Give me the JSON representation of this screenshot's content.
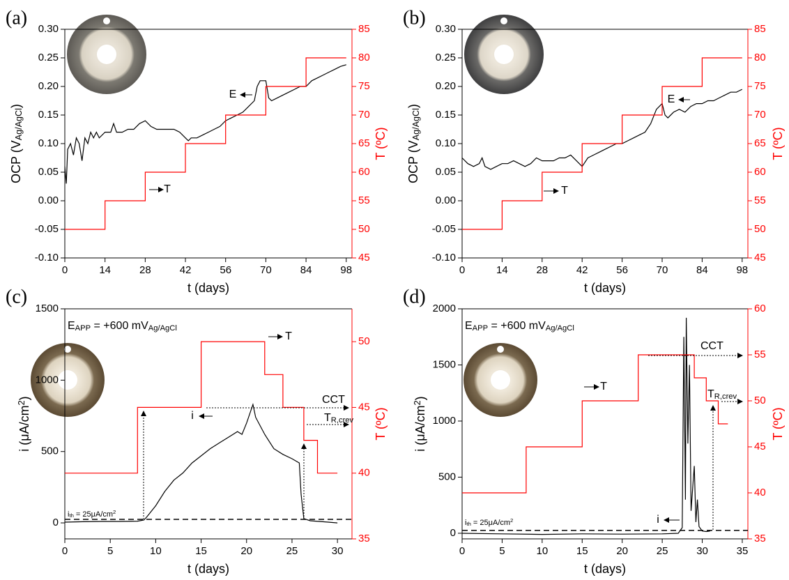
{
  "chart_data": [
    {
      "type": "line",
      "panel": "(a)",
      "x_label": [
        {
          "text": "t (days)"
        }
      ],
      "y_label": [
        {
          "text": "OCP (V"
        },
        {
          "text": "Ag/AgCl",
          "sub": true
        },
        {
          "text": ")"
        }
      ],
      "y2_label": [
        {
          "text": "T (ºC)"
        }
      ],
      "xlim": [
        0,
        100
      ],
      "xticks": [
        0,
        14,
        28,
        42,
        56,
        70,
        84,
        98
      ],
      "ylim": [
        -0.1,
        0.3
      ],
      "yticks": [
        {
          "value": -0.1,
          "label": "-0.10"
        },
        -0.05,
        {
          "value": 0,
          "label": "0.00"
        },
        0.05,
        {
          "value": 0.1,
          "label": "0.10"
        },
        0.15,
        {
          "value": 0.2,
          "label": "0.20"
        },
        0.25,
        {
          "value": 0.3,
          "label": "0.30"
        }
      ],
      "y2lim": [
        45,
        85
      ],
      "y2ticks": [
        45,
        50,
        55,
        60,
        65,
        70,
        75,
        80,
        85
      ],
      "y2_color": "#ff0000",
      "series": [
        {
          "name": "E",
          "color": "#000000",
          "x": [
            0,
            0.5,
            1,
            2,
            3,
            4,
            5,
            6,
            7,
            8,
            9,
            10,
            11,
            12,
            14,
            16,
            17,
            18,
            20,
            22,
            24,
            26,
            28,
            30,
            32,
            34,
            36,
            38,
            40,
            42,
            43,
            44,
            46,
            48,
            50,
            52,
            54,
            56,
            58,
            60,
            62,
            64,
            66,
            67,
            68,
            69,
            70,
            71,
            72,
            74,
            76,
            78,
            80,
            82,
            84,
            86,
            88,
            90,
            92,
            94,
            96,
            98
          ],
          "values": [
            0.06,
            0.03,
            0.09,
            0.1,
            0.08,
            0.11,
            0.1,
            0.07,
            0.11,
            0.1,
            0.12,
            0.11,
            0.12,
            0.11,
            0.12,
            0.12,
            0.135,
            0.12,
            0.12,
            0.125,
            0.125,
            0.135,
            0.14,
            0.13,
            0.125,
            0.125,
            0.125,
            0.125,
            0.12,
            0.11,
            0.105,
            0.11,
            0.11,
            0.115,
            0.12,
            0.125,
            0.13,
            0.14,
            0.145,
            0.15,
            0.155,
            0.165,
            0.175,
            0.2,
            0.21,
            0.21,
            0.21,
            0.18,
            0.175,
            0.18,
            0.185,
            0.19,
            0.195,
            0.2,
            0.2,
            0.21,
            0.215,
            0.22,
            0.225,
            0.23,
            0.235,
            0.238
          ]
        },
        {
          "name": "T",
          "color": "#ff0000",
          "axis": "y2",
          "x": [
            0,
            14,
            14,
            28,
            28,
            42,
            42,
            56,
            56,
            70,
            70,
            84,
            84,
            98
          ],
          "values": [
            50,
            50,
            55,
            55,
            60,
            60,
            65,
            65,
            70,
            70,
            75,
            75,
            80,
            80
          ]
        }
      ]
    },
    {
      "type": "line",
      "panel": "(b)",
      "x_label": [
        {
          "text": "t (days)"
        }
      ],
      "y_label": [
        {
          "text": "OCP (V"
        },
        {
          "text": "Ag/AgCl",
          "sub": true
        },
        {
          "text": ")"
        }
      ],
      "y2_label": [
        {
          "text": "T (ºC)"
        }
      ],
      "xlim": [
        0,
        100
      ],
      "xticks": [
        0,
        14,
        28,
        42,
        56,
        70,
        84,
        98
      ],
      "ylim": [
        -0.1,
        0.3
      ],
      "yticks": [
        {
          "value": -0.1,
          "label": "-0.10"
        },
        -0.05,
        {
          "value": 0,
          "label": "0.00"
        },
        0.05,
        {
          "value": 0.1,
          "label": "0.10"
        },
        0.15,
        {
          "value": 0.2,
          "label": "0.20"
        },
        0.25,
        {
          "value": 0.3,
          "label": "0.30"
        }
      ],
      "y2lim": [
        45,
        85
      ],
      "y2ticks": [
        45,
        50,
        55,
        60,
        65,
        70,
        75,
        80,
        85
      ],
      "y2_color": "#ff0000",
      "series": [
        {
          "name": "E",
          "color": "#000000",
          "x": [
            0,
            2,
            4,
            6,
            7,
            8,
            10,
            12,
            14,
            16,
            18,
            20,
            22,
            24,
            26,
            28,
            30,
            32,
            34,
            36,
            38,
            40,
            42,
            44,
            46,
            48,
            50,
            52,
            54,
            56,
            58,
            60,
            62,
            64,
            66,
            68,
            70,
            71,
            72,
            74,
            76,
            78,
            80,
            82,
            84,
            86,
            88,
            90,
            92,
            94,
            96,
            98
          ],
          "values": [
            0.075,
            0.065,
            0.06,
            0.065,
            0.075,
            0.06,
            0.055,
            0.06,
            0.065,
            0.065,
            0.07,
            0.065,
            0.06,
            0.065,
            0.075,
            0.07,
            0.07,
            0.07,
            0.075,
            0.075,
            0.08,
            0.07,
            0.06,
            0.075,
            0.08,
            0.085,
            0.09,
            0.095,
            0.1,
            0.1,
            0.105,
            0.11,
            0.115,
            0.12,
            0.135,
            0.16,
            0.17,
            0.15,
            0.145,
            0.155,
            0.16,
            0.155,
            0.165,
            0.17,
            0.17,
            0.175,
            0.175,
            0.18,
            0.185,
            0.19,
            0.19,
            0.195
          ]
        },
        {
          "name": "T",
          "color": "#ff0000",
          "axis": "y2",
          "x": [
            0,
            14,
            14,
            28,
            28,
            42,
            42,
            56,
            56,
            70,
            70,
            84,
            84,
            98
          ],
          "values": [
            50,
            50,
            55,
            55,
            60,
            60,
            65,
            65,
            70,
            70,
            75,
            75,
            80,
            80
          ]
        }
      ]
    },
    {
      "type": "line",
      "panel": "(c)",
      "x_label": [
        {
          "text": "t (days)"
        }
      ],
      "y_label": [
        {
          "text": "i (μA/cm"
        },
        {
          "text": "2",
          "sup": true
        },
        {
          "text": ")"
        }
      ],
      "y2_label": [
        {
          "text": "T (ºC)"
        }
      ],
      "xlim": [
        0,
        31.6
      ],
      "xticks": [
        0,
        5,
        10,
        15,
        20,
        25,
        30
      ],
      "ylim": [
        -112,
        1500
      ],
      "yticks": [
        0,
        500,
        1000,
        1500
      ],
      "y2lim": [
        35,
        52.5
      ],
      "y2ticks": [
        35,
        40,
        45,
        50
      ],
      "y2_color": "#ff0000",
      "series": [
        {
          "name": "i",
          "color": "#000000",
          "x": [
            0,
            2,
            4,
            6,
            8,
            8.7,
            9,
            10,
            11,
            12,
            13,
            14,
            15,
            16,
            17,
            18,
            19,
            19.5,
            20,
            20.7,
            21,
            22,
            23,
            24,
            25,
            25.8,
            26,
            26.3,
            27,
            28,
            29,
            30
          ],
          "values": [
            5,
            8,
            10,
            10,
            12,
            20,
            40,
            120,
            220,
            300,
            350,
            420,
            470,
            520,
            560,
            600,
            640,
            620,
            700,
            830,
            740,
            620,
            520,
            480,
            450,
            420,
            200,
            30,
            15,
            10,
            5,
            0
          ]
        },
        {
          "name": "T",
          "color": "#ff0000",
          "axis": "y2",
          "x": [
            0,
            8,
            8,
            15,
            15,
            22,
            22,
            24,
            24,
            26.3,
            26.3,
            27.8,
            27.8,
            30
          ],
          "values": [
            40,
            40,
            45,
            45,
            50,
            50,
            47.5,
            47.5,
            45,
            45,
            42.5,
            42.5,
            40,
            40
          ]
        }
      ],
      "threshold": {
        "value": 25,
        "label": [
          {
            "text": "i"
          },
          {
            "text": "th",
            "sub": true
          },
          {
            "text": " = 25μA/cm"
          },
          {
            "text": "2",
            "sup": true
          }
        ]
      },
      "annotations": [
        [
          {
            "text": "E"
          },
          {
            "text": "APP",
            "sub": true
          },
          {
            "text": " = +600 mV"
          },
          {
            "text": "Ag/AgCl",
            "sub": true
          }
        ],
        [
          {
            "text": "CCT"
          }
        ],
        [
          {
            "text": "T"
          },
          {
            "text": "R,crev",
            "sub": true
          }
        ]
      ]
    },
    {
      "type": "line",
      "panel": "(d)",
      "x_label": [
        {
          "text": "t (days)"
        }
      ],
      "y_label": [
        {
          "text": "i (μA/cm"
        },
        {
          "text": "2",
          "sup": true
        },
        {
          "text": ")"
        }
      ],
      "y2_label": [
        {
          "text": "T (ºC)"
        }
      ],
      "xlim": [
        0,
        35.7
      ],
      "xticks": [
        0,
        5,
        10,
        15,
        20,
        25,
        30,
        35
      ],
      "ylim": [
        -50,
        2000
      ],
      "yticks": [
        0,
        500,
        1000,
        1500,
        2000
      ],
      "y2lim": [
        35,
        60
      ],
      "y2ticks": [
        35,
        40,
        45,
        50,
        55,
        60
      ],
      "y2_color": "#ff0000",
      "series": [
        {
          "name": "i",
          "color": "#000000",
          "x": [
            0,
            5,
            10,
            15,
            20,
            25,
            27,
            27.5,
            27.7,
            27.9,
            28,
            28.2,
            28.4,
            28.6,
            28.8,
            29,
            29.2,
            29.4,
            29.6,
            30,
            30.5,
            31
          ],
          "values": [
            0,
            -5,
            -10,
            -5,
            -8,
            -5,
            0,
            50,
            1750,
            300,
            1920,
            800,
            1500,
            200,
            400,
            600,
            100,
            300,
            60,
            20,
            15,
            20
          ]
        },
        {
          "name": "T",
          "color": "#ff0000",
          "axis": "y2",
          "x": [
            0,
            8,
            8,
            15,
            15,
            22,
            22,
            29,
            29,
            30.5,
            30.5,
            32,
            32,
            33.2
          ],
          "values": [
            40,
            40,
            45,
            45,
            50,
            50,
            55,
            55,
            52.5,
            52.5,
            50,
            50,
            47.5,
            47.5
          ]
        }
      ],
      "threshold": {
        "value": 25,
        "label": [
          {
            "text": "i"
          },
          {
            "text": "th",
            "sub": true
          },
          {
            "text": " = 25μA/cm"
          },
          {
            "text": "2",
            "sup": true
          }
        ]
      },
      "annotations": [
        [
          {
            "text": "E"
          },
          {
            "text": "APP",
            "sub": true
          },
          {
            "text": " = +600 mV"
          },
          {
            "text": "Ag/AgCl",
            "sub": true
          }
        ],
        [
          {
            "text": "CCT"
          }
        ],
        [
          {
            "text": "T"
          },
          {
            "text": "R,crev",
            "sub": true
          }
        ]
      ]
    }
  ]
}
